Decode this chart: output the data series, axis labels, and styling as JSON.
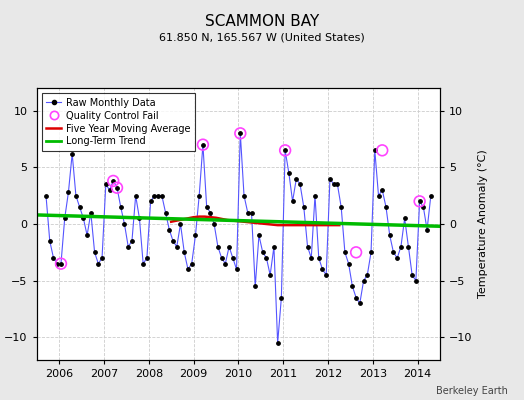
{
  "title": "SCAMMON BAY",
  "subtitle": "61.850 N, 165.567 W (United States)",
  "ylabel": "Temperature Anomaly (°C)",
  "credit": "Berkeley Earth",
  "bg_color": "#e8e8e8",
  "plot_bg_color": "#ffffff",
  "xlim": [
    2005.5,
    2014.5
  ],
  "ylim": [
    -12,
    12
  ],
  "yticks": [
    -10,
    -5,
    0,
    5,
    10
  ],
  "xticks": [
    2006,
    2007,
    2008,
    2009,
    2010,
    2011,
    2012,
    2013,
    2014
  ],
  "raw_x": [
    2005.708,
    2005.792,
    2005.875,
    2005.958,
    2006.042,
    2006.125,
    2006.208,
    2006.292,
    2006.375,
    2006.458,
    2006.542,
    2006.625,
    2006.708,
    2006.792,
    2006.875,
    2006.958,
    2007.042,
    2007.125,
    2007.208,
    2007.292,
    2007.375,
    2007.458,
    2007.542,
    2007.625,
    2007.708,
    2007.792,
    2007.875,
    2007.958,
    2008.042,
    2008.125,
    2008.208,
    2008.292,
    2008.375,
    2008.458,
    2008.542,
    2008.625,
    2008.708,
    2008.792,
    2008.875,
    2008.958,
    2009.042,
    2009.125,
    2009.208,
    2009.292,
    2009.375,
    2009.458,
    2009.542,
    2009.625,
    2009.708,
    2009.792,
    2009.875,
    2009.958,
    2010.042,
    2010.125,
    2010.208,
    2010.292,
    2010.375,
    2010.458,
    2010.542,
    2010.625,
    2010.708,
    2010.792,
    2010.875,
    2010.958,
    2011.042,
    2011.125,
    2011.208,
    2011.292,
    2011.375,
    2011.458,
    2011.542,
    2011.625,
    2011.708,
    2011.792,
    2011.875,
    2011.958,
    2012.042,
    2012.125,
    2012.208,
    2012.292,
    2012.375,
    2012.458,
    2012.542,
    2012.625,
    2012.708,
    2012.792,
    2012.875,
    2012.958,
    2013.042,
    2013.125,
    2013.208,
    2013.292,
    2013.375,
    2013.458,
    2013.542,
    2013.625,
    2013.708,
    2013.792,
    2013.875,
    2013.958,
    2014.042,
    2014.125,
    2014.208,
    2014.292
  ],
  "raw_y": [
    2.5,
    -1.5,
    -3.0,
    -3.5,
    -3.5,
    0.5,
    2.8,
    6.2,
    2.5,
    1.5,
    0.5,
    -1.0,
    1.0,
    -2.5,
    -3.5,
    -3.0,
    3.5,
    3.0,
    3.8,
    3.2,
    1.5,
    0.0,
    -2.0,
    -1.5,
    2.5,
    0.5,
    -3.5,
    -3.0,
    2.0,
    2.5,
    2.5,
    2.5,
    1.0,
    -0.5,
    -1.5,
    -2.0,
    0.0,
    -2.5,
    -4.0,
    -3.5,
    -1.0,
    2.5,
    7.0,
    1.5,
    1.0,
    0.0,
    -2.0,
    -3.0,
    -3.5,
    -2.0,
    -3.0,
    -4.0,
    8.0,
    2.5,
    1.0,
    1.0,
    -5.5,
    -1.0,
    -2.5,
    -3.0,
    -4.5,
    -2.0,
    -10.5,
    -6.5,
    6.5,
    4.5,
    2.0,
    4.0,
    3.5,
    1.5,
    -2.0,
    -3.0,
    2.5,
    -3.0,
    -4.0,
    -4.5,
    4.0,
    3.5,
    3.5,
    1.5,
    -2.5,
    -3.5,
    -5.5,
    -6.5,
    -7.0,
    -5.0,
    -4.5,
    -2.5,
    6.5,
    2.5,
    3.0,
    1.5,
    -1.0,
    -2.5,
    -3.0,
    -2.0,
    0.5,
    -2.0,
    -4.5,
    -5.0,
    2.0,
    1.5,
    -0.5,
    2.5
  ],
  "qc_fail_x": [
    2006.042,
    2007.208,
    2007.292,
    2009.208,
    2010.042,
    2011.042,
    2012.625,
    2013.208,
    2014.042
  ],
  "qc_fail_y": [
    -3.5,
    3.8,
    3.2,
    7.0,
    8.0,
    6.5,
    -2.5,
    6.5,
    2.0
  ],
  "moving_avg_x": [
    2008.5,
    2008.625,
    2008.75,
    2008.875,
    2009.0,
    2009.125,
    2009.25,
    2009.375,
    2009.5,
    2009.625,
    2009.75,
    2009.875,
    2010.0,
    2010.125,
    2010.25,
    2010.375,
    2010.5,
    2010.625,
    2010.75,
    2010.875,
    2011.0,
    2011.125,
    2011.25,
    2011.375,
    2011.5,
    2011.625,
    2011.75,
    2011.875,
    2012.0,
    2012.125,
    2012.25
  ],
  "moving_avg_y": [
    0.2,
    0.3,
    0.4,
    0.5,
    0.6,
    0.65,
    0.65,
    0.6,
    0.55,
    0.45,
    0.35,
    0.3,
    0.25,
    0.2,
    0.15,
    0.1,
    0.05,
    0.0,
    -0.05,
    -0.1,
    -0.1,
    -0.1,
    -0.1,
    -0.1,
    -0.1,
    -0.1,
    -0.1,
    -0.1,
    -0.1,
    -0.1,
    -0.1
  ],
  "trend_x": [
    2005.5,
    2014.5
  ],
  "trend_y": [
    0.8,
    -0.2
  ],
  "raw_line_color": "#5555ff",
  "raw_dot_color": "#000000",
  "qc_color": "#ff44ff",
  "moving_avg_color": "#dd0000",
  "trend_color": "#00bb00",
  "grid_color": "#cccccc",
  "title_fontsize": 11,
  "subtitle_fontsize": 8,
  "tick_fontsize": 8,
  "ylabel_fontsize": 8,
  "legend_fontsize": 7,
  "credit_fontsize": 7
}
